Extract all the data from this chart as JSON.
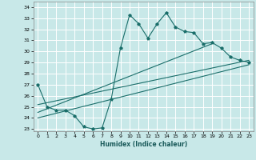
{
  "xlabel": "Humidex (Indice chaleur)",
  "bg_color": "#c8e8e8",
  "grid_color": "#ffffff",
  "line_color": "#1a6e6a",
  "xlim": [
    -0.5,
    23.5
  ],
  "ylim": [
    22.8,
    34.5
  ],
  "yticks": [
    23,
    24,
    25,
    26,
    27,
    28,
    29,
    30,
    31,
    32,
    33,
    34
  ],
  "xticks": [
    0,
    1,
    2,
    3,
    4,
    5,
    6,
    7,
    8,
    9,
    10,
    11,
    12,
    13,
    14,
    15,
    16,
    17,
    18,
    19,
    20,
    21,
    22,
    23
  ],
  "series1_x": [
    0,
    1,
    2,
    3,
    4,
    5,
    6,
    7,
    8,
    9,
    10,
    11,
    12,
    13,
    14,
    15,
    16,
    17,
    18,
    19,
    20,
    21,
    22,
    23
  ],
  "series1_y": [
    27.0,
    25.0,
    24.7,
    24.7,
    24.2,
    23.2,
    23.0,
    23.1,
    25.7,
    30.3,
    33.3,
    32.5,
    31.2,
    32.5,
    33.5,
    32.2,
    31.8,
    31.7,
    30.7,
    30.8,
    30.3,
    29.5,
    29.2,
    29.0
  ],
  "series2_x": [
    0,
    19
  ],
  "series2_y": [
    24.5,
    30.7
  ],
  "series3_x": [
    0,
    23
  ],
  "series3_y": [
    25.2,
    29.2
  ],
  "series4_x": [
    0,
    23
  ],
  "series4_y": [
    24.0,
    28.8
  ]
}
